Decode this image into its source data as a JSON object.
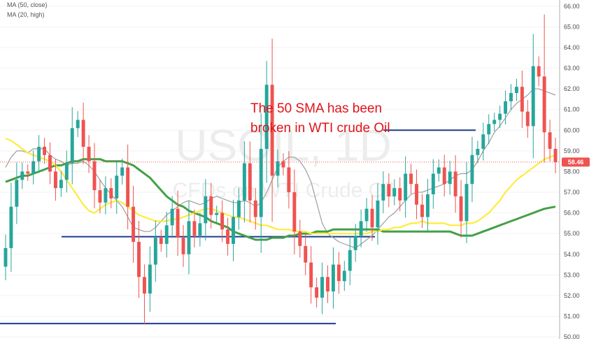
{
  "legend": {
    "ma1": "MA (50, close)",
    "ma2": "MA (20, high)"
  },
  "watermark": {
    "symbol": "USOIL, 1D",
    "description": "CFDs on WTI Crude Oil"
  },
  "annotation": {
    "line1": "The 50 SMA has been",
    "line2": "broken in WTI crude Oil"
  },
  "last_price_label": "58.46",
  "colors": {
    "up": "#26a69a",
    "down": "#ef5350",
    "ma50": "#ffeb3b",
    "ma20": "#9e9e9e",
    "ma_extra": "#43a047",
    "levels": "#1a3d8f",
    "annotation": "#e0141b",
    "price_line": "#ef5350"
  },
  "chart_data": {
    "type": "candlestick",
    "ylim": [
      49.9,
      66.3
    ],
    "y_ticks": [
      "50.00",
      "51.00",
      "52.00",
      "53.00",
      "54.00",
      "55.00",
      "56.00",
      "57.00",
      "58.00",
      "59.00",
      "60.00",
      "61.00",
      "62.00",
      "63.00",
      "64.00",
      "65.00",
      "66.00"
    ],
    "last_price": 58.46,
    "horizontal_levels": [
      {
        "y": 54.85,
        "x_start": 0.11,
        "x_end": 0.67
      },
      {
        "y": 50.65,
        "x_start": 0.0,
        "x_end": 0.6
      },
      {
        "y": 60.0,
        "x_start": 0.685,
        "x_end": 0.85
      }
    ],
    "closes": [
      54.3,
      56.3,
      57.6,
      58.0,
      57.9,
      58.5,
      59.2,
      58.8,
      58.0,
      57.2,
      57.6,
      58.4,
      60.1,
      60.5,
      59.2,
      58.5,
      57.1,
      56.5,
      57.2,
      56.7,
      57.8,
      58.2,
      56.3,
      54.6,
      52.9,
      52.1,
      53.5,
      54.8,
      54.5,
      55.4,
      56.2,
      54.8,
      54.0,
      55.6,
      54.9,
      55.5,
      56.8,
      55.9,
      56.0,
      55.2,
      54.5,
      55.8,
      56.6,
      58.4,
      56.6,
      55.8,
      59.1,
      62.2,
      57.8,
      58.5,
      58.2,
      57.0,
      55.1,
      54.4,
      53.6,
      52.4,
      51.9,
      52.9,
      52.2,
      53.5,
      52.7,
      53.2,
      54.2,
      54.9,
      55.6,
      56.2,
      55.3,
      56.6,
      57.4,
      56.8,
      57.2,
      56.6,
      57.9,
      57.4,
      56.4,
      55.8,
      56.9,
      57.9,
      58.2,
      57.4,
      58.0,
      56.8,
      55.6,
      57.4,
      58.8,
      59.1,
      59.8,
      60.3,
      60.5,
      60.8,
      61.4,
      61.8,
      62.1,
      60.9,
      60.2,
      63.1,
      62.6,
      59.9,
      59.1,
      58.46
    ],
    "ma50": [
      59.6,
      59.5,
      59.3,
      59.1,
      58.9,
      58.8,
      58.7,
      58.6,
      58.5,
      58.3,
      58.0,
      57.6,
      57.2,
      56.8,
      56.4,
      56.1,
      56.0,
      56.2,
      56.4,
      56.5,
      56.6,
      56.5,
      56.3,
      56.1,
      55.9,
      55.8,
      55.7,
      55.6,
      55.6,
      55.6,
      55.7,
      55.7,
      55.8,
      55.9,
      56.0,
      56.1,
      56.2,
      56.2,
      56.1,
      56.0,
      55.9,
      55.8,
      55.8,
      55.7,
      55.6,
      55.5,
      55.4,
      55.4,
      55.3,
      55.2,
      55.2,
      55.2,
      55.1,
      55.1,
      55.1,
      55.0,
      55.0,
      55.0,
      55.0,
      55.0,
      55.0,
      55.0,
      55.0,
      55.0,
      55.0,
      55.0,
      55.1,
      55.1,
      55.2,
      55.2,
      55.3,
      55.3,
      55.4,
      55.5,
      55.5,
      55.6,
      55.5,
      55.5,
      55.5,
      55.5,
      55.4,
      55.4,
      55.4,
      55.5,
      55.5,
      55.6,
      55.8,
      56.0,
      56.3,
      56.6,
      57.0,
      57.3,
      57.6,
      57.8,
      58.0,
      58.2,
      58.4,
      58.6,
      58.7,
      58.8
    ],
    "ma20": [
      56.8,
      56.8,
      56.7,
      56.7,
      56.7,
      56.5,
      56.4,
      56.2,
      56.0,
      55.8,
      55.5,
      55.3,
      55.1,
      54.8,
      54.5,
      54.4,
      54.6,
      54.8,
      55.1,
      55.4,
      55.7,
      56.0,
      56.4,
      56.8,
      57.2,
      57.6,
      58.0,
      58.2,
      58.3,
      58.3,
      58.2,
      58.1,
      57.9,
      57.6,
      57.4,
      57.3,
      57.2,
      57.0,
      56.7,
      56.5,
      56.4,
      56.2,
      56.0,
      55.8,
      55.6,
      55.4,
      55.2,
      55.1,
      55.0,
      54.8,
      54.7,
      54.7,
      54.7,
      54.8,
      54.9,
      54.9,
      55.0,
      55.0,
      55.0,
      55.0,
      54.9,
      54.9,
      54.9,
      54.9,
      55.1,
      55.1,
      55.2,
      55.2,
      55.2,
      55.2,
      55.1,
      55.0,
      55.0,
      55.0,
      55.0,
      55.0,
      55.0,
      55.0,
      54.9,
      54.9,
      54.9,
      54.9,
      55.0,
      55.1,
      55.2,
      55.3,
      55.4,
      55.5,
      55.6,
      55.7,
      55.8,
      56.0,
      56.1,
      56.2,
      56.3,
      56.3,
      56.4,
      56.4,
      56.4,
      56.4
    ],
    "ma20h": [
      58.2,
      58.7,
      59.0,
      59.0,
      58.9,
      59.1,
      59.1,
      59.1,
      58.8,
      58.6,
      58.5,
      58.3,
      58.4,
      58.4,
      58.5,
      58.3,
      58.0,
      57.6,
      57.2,
      56.9,
      56.6,
      56.3,
      55.8,
      55.3,
      55.2,
      55.1,
      55.1,
      55.3,
      55.6,
      55.9,
      56.1,
      56.3,
      56.5,
      56.6,
      56.5,
      56.4,
      56.5,
      56.7,
      56.8,
      56.7,
      56.6,
      56.5,
      56.5,
      56.6,
      56.5,
      56.3,
      56.5,
      57.0,
      57.6,
      58.2,
      58.5,
      58.7,
      58.7,
      58.5,
      58.1,
      57.5,
      56.5,
      55.5,
      55.0,
      54.8,
      54.6,
      54.5,
      54.4,
      54.3,
      54.5,
      54.7,
      54.9,
      55.2,
      55.5,
      55.8,
      56.0,
      56.3,
      56.6,
      56.9,
      57.0,
      57.0,
      57.1,
      57.2,
      57.3,
      57.4,
      57.6,
      57.8,
      57.9,
      57.9,
      58.1,
      58.5,
      59.0,
      59.4,
      59.9,
      60.2,
      60.6,
      61.0,
      61.3,
      61.5,
      61.7,
      62.0,
      62.0,
      61.9,
      61.8,
      61.7
    ],
    "ma_green": [
      57.5,
      57.6,
      57.7,
      57.8,
      57.8,
      57.9,
      58.0,
      58.1,
      58.2,
      58.3,
      58.3,
      58.4,
      58.5,
      58.5,
      58.6,
      58.6,
      58.6,
      58.6,
      58.5,
      58.5,
      58.5,
      58.5,
      58.4,
      58.3,
      58.1,
      57.9,
      57.7,
      57.4,
      57.1,
      56.8,
      56.6,
      56.4,
      56.3,
      56.1,
      56.0,
      55.9,
      55.8,
      55.6,
      55.5,
      55.4,
      55.3,
      55.1,
      55.0,
      54.9,
      54.8,
      54.7,
      54.7,
      54.7,
      54.8,
      54.8,
      54.8,
      54.9,
      54.9,
      55.0,
      55.0,
      55.0,
      55.1,
      55.1,
      55.1,
      55.2,
      55.2,
      55.2,
      55.2,
      55.2,
      55.2,
      55.2,
      55.2,
      55.2,
      55.1,
      55.1,
      55.1,
      55.1,
      55.1,
      55.1,
      55.1,
      55.1,
      55.1,
      55.1,
      55.1,
      55.1,
      55.1,
      55.0,
      54.9,
      54.9,
      54.9,
      55.0,
      55.1,
      55.2,
      55.3,
      55.4,
      55.5,
      55.6,
      55.7,
      55.8,
      55.9,
      56.0,
      56.1,
      56.2,
      56.25,
      56.3
    ]
  }
}
